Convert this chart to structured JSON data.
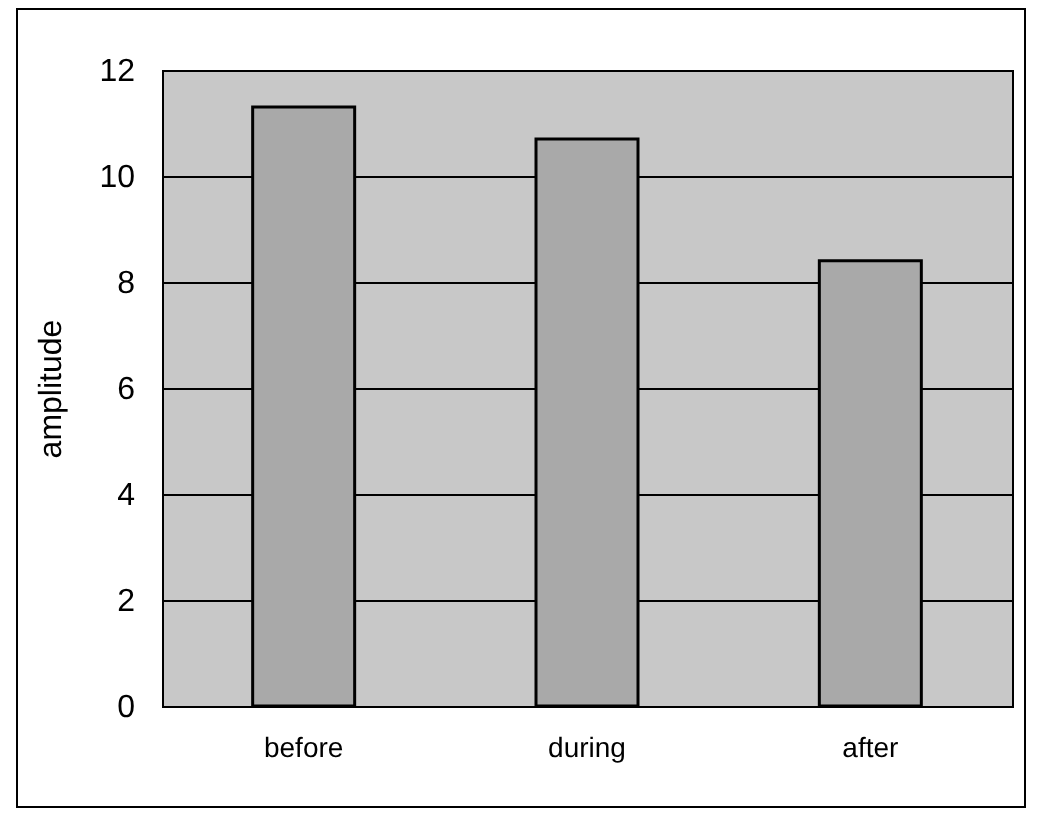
{
  "chart_data": {
    "type": "bar",
    "ylabel": "amplitude",
    "categories": [
      "before",
      "during",
      "after"
    ],
    "values": [
      11.3,
      10.7,
      8.4
    ],
    "color": "#a9a9a9",
    "ylim": [
      0,
      12
    ],
    "yticks": [
      0,
      2,
      4,
      6,
      8,
      10,
      12
    ],
    "grid": "y"
  }
}
